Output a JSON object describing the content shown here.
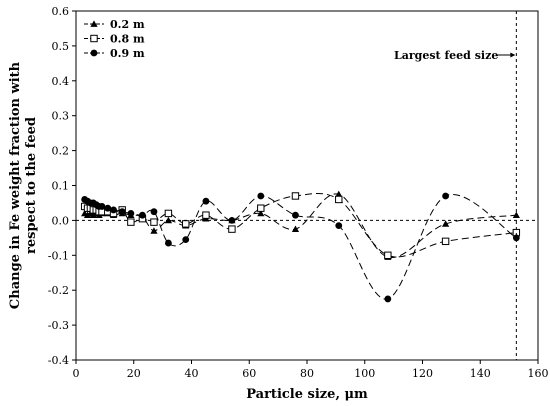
{
  "chart_data": {
    "type": "line",
    "title": "",
    "xlabel": "Particle size, μm",
    "ylabel_lines": [
      "Change in Fe weight fraction with",
      "respect to the feed"
    ],
    "xlim": [
      0,
      160
    ],
    "ylim": [
      -0.4,
      0.6
    ],
    "xticks": [
      0,
      20,
      40,
      60,
      80,
      100,
      120,
      140,
      160
    ],
    "yticks": [
      -0.4,
      -0.3,
      -0.2,
      -0.1,
      0.0,
      0.1,
      0.2,
      0.3,
      0.4,
      0.5,
      0.6
    ],
    "ytick_labels": [
      "-0.4",
      "-0.3",
      "-0.2",
      "-0.1",
      "0.0",
      "0.1",
      "0.2",
      "0.3",
      "0.4",
      "0.5",
      "0.6"
    ],
    "grid": false,
    "legend_position": "top-left",
    "annotation": {
      "text": "Largest feed size",
      "x": 152.5
    },
    "series": [
      {
        "name": "0.2 m",
        "marker": "triangle",
        "x": [
          3,
          4,
          5,
          6,
          7,
          8,
          9,
          11,
          13,
          16,
          19,
          23,
          27,
          32,
          38,
          45,
          54,
          64,
          76,
          91,
          108,
          128,
          152.5
        ],
        "y": [
          0.02,
          0.015,
          0.02,
          0.015,
          0.02,
          0.015,
          0.02,
          0.02,
          0.015,
          0.02,
          0.015,
          0.01,
          -0.03,
          0.0,
          -0.015,
          0.005,
          0.0,
          0.02,
          -0.025,
          0.075,
          -0.105,
          -0.01,
          0.015
        ]
      },
      {
        "name": "0.8 m",
        "marker": "square-open",
        "x": [
          3,
          4,
          5,
          6,
          7,
          8,
          9,
          11,
          13,
          16,
          19,
          23,
          27,
          32,
          38,
          45,
          54,
          64,
          76,
          91,
          108,
          128,
          152.5
        ],
        "y": [
          0.04,
          0.035,
          0.035,
          0.03,
          0.03,
          0.025,
          0.025,
          0.025,
          0.02,
          0.03,
          -0.005,
          0.005,
          -0.005,
          0.02,
          -0.01,
          0.015,
          -0.025,
          0.035,
          0.07,
          0.06,
          -0.1,
          -0.06,
          -0.035
        ]
      },
      {
        "name": "0.9 m",
        "marker": "circle",
        "x": [
          3,
          4,
          5,
          6,
          7,
          8,
          9,
          11,
          13,
          16,
          19,
          23,
          27,
          32,
          38,
          45,
          54,
          64,
          76,
          91,
          108,
          128,
          152.5
        ],
        "y": [
          0.06,
          0.055,
          0.05,
          0.05,
          0.045,
          0.04,
          0.04,
          0.035,
          0.03,
          0.025,
          0.02,
          0.015,
          0.025,
          -0.065,
          -0.055,
          0.055,
          0.0,
          0.07,
          0.015,
          -0.015,
          -0.225,
          0.07,
          -0.05
        ]
      }
    ]
  }
}
